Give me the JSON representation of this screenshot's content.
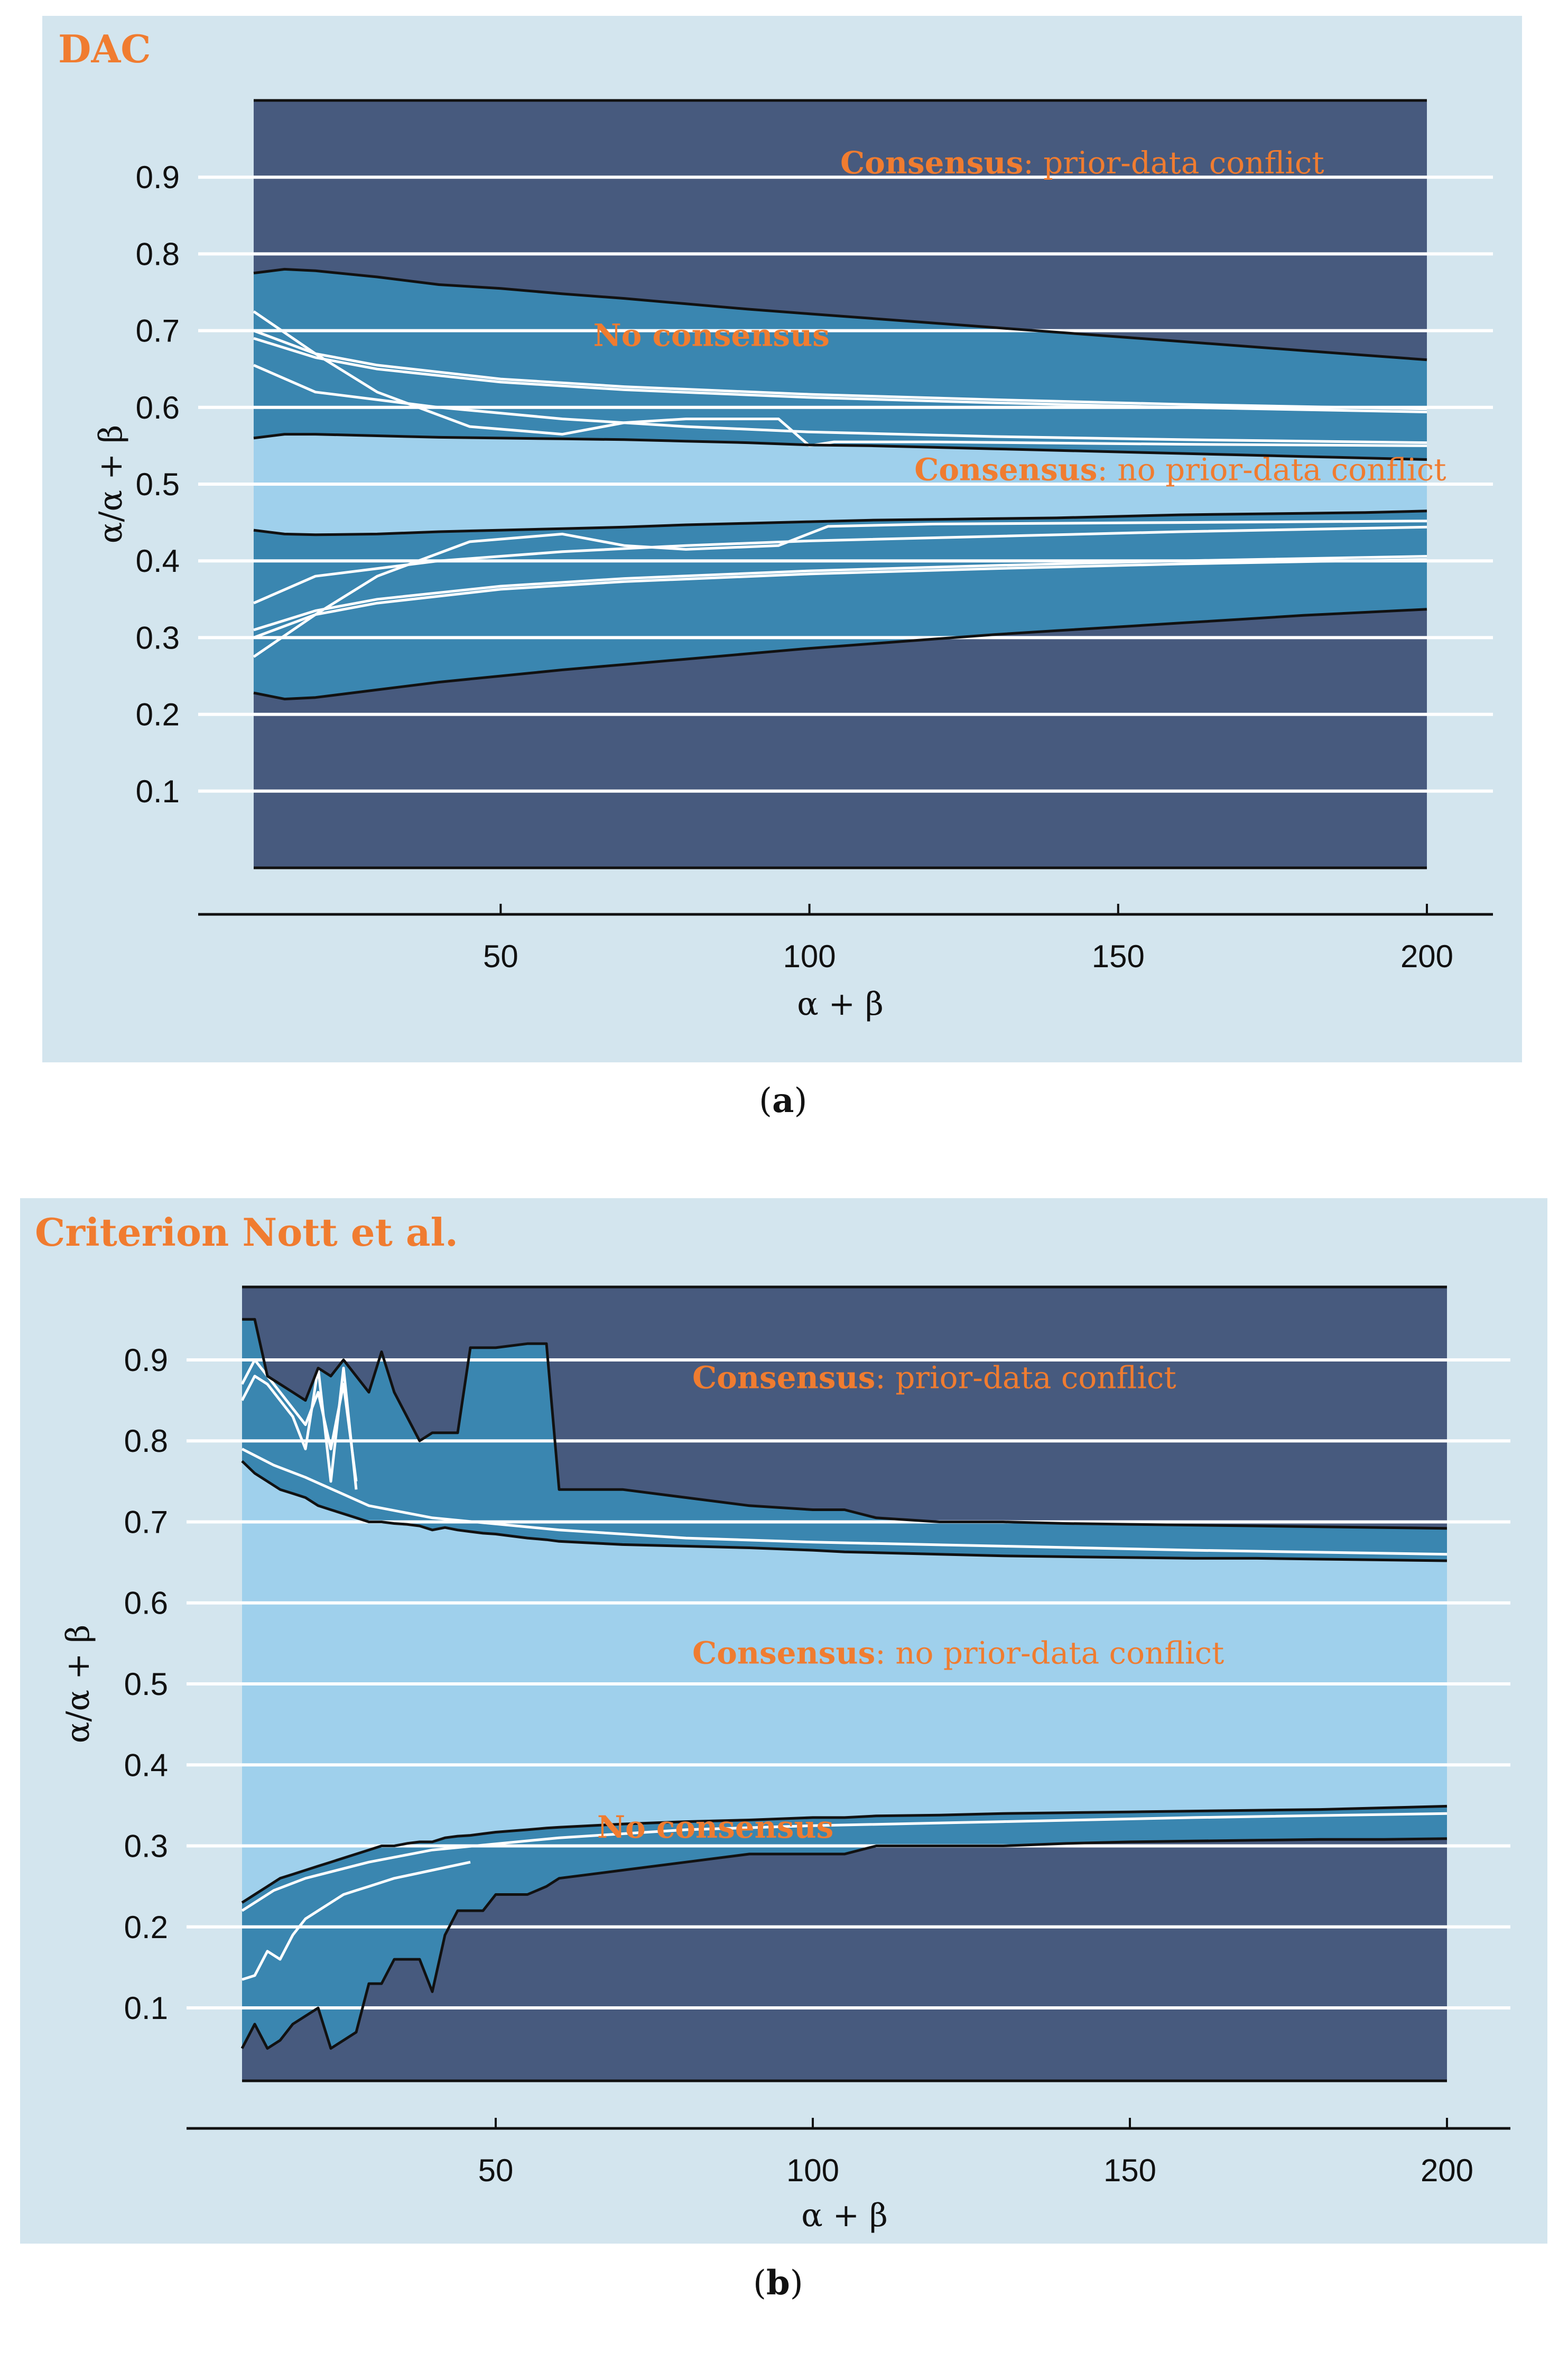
{
  "captions": {
    "a_open": "(",
    "a_letter": "a",
    "a_close": ")",
    "b_open": "(",
    "b_letter": "b",
    "b_close": ")"
  },
  "colors": {
    "panel_bg": "#d3e5ee",
    "prior_data_conflict": "#475a7e",
    "no_consensus": "#3a86b0",
    "no_conflict": "#9fd0ec",
    "annotation": "#f07c30",
    "gridline": "#ffffff",
    "boundary": "#111111"
  },
  "chart_data": [
    {
      "id": "a",
      "type": "area",
      "title": "DAC",
      "xlabel": "α + β",
      "ylabel": "α/α + β",
      "xlim": [
        10,
        200
      ],
      "ylim": [
        0,
        1.0
      ],
      "xticks": [
        50,
        100,
        150,
        200
      ],
      "yticks": [
        0.1,
        0.2,
        0.3,
        0.4,
        0.5,
        0.6,
        0.7,
        0.8,
        0.9
      ],
      "grid": "horizontal",
      "annotations": [
        {
          "bold": "Consensus",
          "rest": ": prior-data conflict",
          "x": 105,
          "y": 0.905
        },
        {
          "bold": "No consensus",
          "rest": "",
          "x": 65,
          "y": 0.68
        },
        {
          "bold": "Consensus",
          "rest": ": no prior-data conflict",
          "x": 117,
          "y": 0.505
        }
      ],
      "boundaries": {
        "x": [
          10,
          15,
          20,
          30,
          40,
          50,
          60,
          70,
          80,
          90,
          100,
          110,
          120,
          130,
          140,
          150,
          160,
          170,
          180,
          190,
          200
        ],
        "upper_outer": [
          0.775,
          0.78,
          0.778,
          0.77,
          0.76,
          0.755,
          0.748,
          0.742,
          0.735,
          0.728,
          0.722,
          0.716,
          0.71,
          0.704,
          0.698,
          0.692,
          0.686,
          0.68,
          0.674,
          0.668,
          0.662
        ],
        "upper_inner": [
          0.56,
          0.565,
          0.565,
          0.563,
          0.561,
          0.56,
          0.559,
          0.558,
          0.556,
          0.554,
          0.551,
          0.55,
          0.548,
          0.546,
          0.544,
          0.542,
          0.54,
          0.538,
          0.536,
          0.534,
          0.532
        ],
        "lower_inner": [
          0.44,
          0.435,
          0.434,
          0.435,
          0.438,
          0.44,
          0.442,
          0.444,
          0.447,
          0.449,
          0.451,
          0.453,
          0.454,
          0.455,
          0.456,
          0.458,
          0.46,
          0.461,
          0.462,
          0.463,
          0.465
        ],
        "lower_outer": [
          0.228,
          0.22,
          0.222,
          0.232,
          0.242,
          0.25,
          0.258,
          0.265,
          0.272,
          0.279,
          0.286,
          0.292,
          0.298,
          0.304,
          0.309,
          0.314,
          0.319,
          0.324,
          0.329,
          0.333,
          0.337
        ]
      },
      "series": [
        {
          "x": [
            10,
            20,
            30,
            50,
            70,
            100,
            130,
            160,
            200
          ],
          "values": [
            0.7,
            0.67,
            0.655,
            0.637,
            0.627,
            0.617,
            0.61,
            0.604,
            0.598
          ]
        },
        {
          "x": [
            10,
            20,
            30,
            50,
            70,
            100,
            130,
            160,
            200
          ],
          "values": [
            0.69,
            0.665,
            0.65,
            0.633,
            0.623,
            0.613,
            0.606,
            0.6,
            0.594
          ]
        },
        {
          "x": [
            10,
            20,
            30,
            45,
            60,
            70,
            80,
            95,
            100,
            104,
            120,
            160,
            200
          ],
          "values": [
            0.725,
            0.67,
            0.62,
            0.575,
            0.565,
            0.58,
            0.585,
            0.585,
            0.55,
            0.555,
            0.555,
            0.552,
            0.55
          ]
        },
        {
          "x": [
            10,
            20,
            40,
            60,
            80,
            100,
            130,
            160,
            200
          ],
          "values": [
            0.655,
            0.62,
            0.6,
            0.585,
            0.575,
            0.568,
            0.562,
            0.558,
            0.554
          ]
        },
        {
          "x": [
            10,
            20,
            30,
            50,
            70,
            100,
            130,
            160,
            200
          ],
          "values": [
            0.3,
            0.33,
            0.345,
            0.363,
            0.373,
            0.383,
            0.39,
            0.396,
            0.402
          ]
        },
        {
          "x": [
            10,
            20,
            30,
            50,
            70,
            100,
            130,
            160,
            200
          ],
          "values": [
            0.31,
            0.335,
            0.35,
            0.367,
            0.377,
            0.387,
            0.394,
            0.4,
            0.406
          ]
        },
        {
          "x": [
            10,
            20,
            30,
            45,
            60,
            70,
            80,
            95,
            103,
            120,
            160,
            200
          ],
          "values": [
            0.275,
            0.33,
            0.38,
            0.425,
            0.435,
            0.42,
            0.415,
            0.42,
            0.445,
            0.448,
            0.45,
            0.452
          ]
        },
        {
          "x": [
            10,
            20,
            40,
            60,
            80,
            100,
            130,
            160,
            200
          ],
          "values": [
            0.345,
            0.38,
            0.4,
            0.412,
            0.42,
            0.426,
            0.432,
            0.438,
            0.444
          ]
        }
      ]
    },
    {
      "id": "b",
      "type": "area",
      "title": "Criterion Nott et al.",
      "xlabel": "α + β",
      "ylabel": "α/α + β",
      "xlim": [
        10,
        200
      ],
      "ylim": [
        0.01,
        0.99
      ],
      "xticks": [
        50,
        100,
        150,
        200
      ],
      "yticks": [
        0.1,
        0.2,
        0.3,
        0.4,
        0.5,
        0.6,
        0.7,
        0.8,
        0.9
      ],
      "grid": "horizontal",
      "annotations": [
        {
          "bold": "Consensus",
          "rest": ": prior-data conflict",
          "x": 81,
          "y": 0.865
        },
        {
          "bold": "Consensus",
          "rest": ": no prior-data conflict",
          "x": 81,
          "y": 0.525
        },
        {
          "bold": "No consensus",
          "rest": "",
          "x": 66,
          "y": 0.31
        }
      ],
      "boundaries": {
        "x": [
          10,
          12,
          14,
          16,
          18,
          20,
          22,
          24,
          26,
          28,
          30,
          32,
          34,
          36,
          38,
          40,
          42,
          44,
          46,
          48,
          50,
          55,
          58,
          60,
          70,
          80,
          90,
          100,
          105,
          110,
          120,
          130,
          140,
          150,
          160,
          170,
          180,
          190,
          200
        ],
        "upper_outer": [
          0.95,
          0.95,
          0.88,
          0.87,
          0.86,
          0.85,
          0.89,
          0.88,
          0.9,
          0.88,
          0.86,
          0.91,
          0.86,
          0.83,
          0.8,
          0.81,
          0.81,
          0.81,
          0.915,
          0.915,
          0.915,
          0.92,
          0.92,
          0.74,
          0.74,
          0.73,
          0.72,
          0.715,
          0.715,
          0.705,
          0.7,
          0.7,
          0.698,
          0.697,
          0.696,
          0.695,
          0.694,
          0.693,
          0.692
        ],
        "upper_inner": [
          0.775,
          0.76,
          0.75,
          0.74,
          0.735,
          0.73,
          0.72,
          0.715,
          0.71,
          0.705,
          0.7,
          0.7,
          0.698,
          0.697,
          0.695,
          0.69,
          0.693,
          0.69,
          0.688,
          0.686,
          0.685,
          0.68,
          0.678,
          0.676,
          0.672,
          0.67,
          0.668,
          0.665,
          0.663,
          0.662,
          0.66,
          0.658,
          0.657,
          0.656,
          0.655,
          0.655,
          0.654,
          0.653,
          0.652
        ],
        "lower_inner": [
          0.23,
          0.24,
          0.25,
          0.26,
          0.265,
          0.27,
          0.275,
          0.28,
          0.285,
          0.29,
          0.295,
          0.3,
          0.3,
          0.303,
          0.305,
          0.305,
          0.31,
          0.312,
          0.313,
          0.315,
          0.317,
          0.32,
          0.322,
          0.323,
          0.327,
          0.33,
          0.332,
          0.335,
          0.335,
          0.337,
          0.338,
          0.34,
          0.341,
          0.342,
          0.343,
          0.344,
          0.345,
          0.347,
          0.349
        ],
        "lower_outer": [
          0.05,
          0.08,
          0.05,
          0.06,
          0.08,
          0.09,
          0.1,
          0.05,
          0.06,
          0.07,
          0.13,
          0.13,
          0.16,
          0.16,
          0.16,
          0.12,
          0.19,
          0.22,
          0.22,
          0.22,
          0.24,
          0.24,
          0.25,
          0.26,
          0.27,
          0.28,
          0.29,
          0.29,
          0.29,
          0.3,
          0.3,
          0.3,
          0.303,
          0.305,
          0.306,
          0.307,
          0.308,
          0.308,
          0.309
        ]
      },
      "series": [
        {
          "x": [
            10,
            15,
            20,
            30,
            40,
            60,
            80,
            100,
            130,
            160,
            200
          ],
          "values": [
            0.79,
            0.77,
            0.755,
            0.72,
            0.705,
            0.69,
            0.68,
            0.675,
            0.67,
            0.665,
            0.66
          ]
        },
        {
          "x": [
            10,
            12,
            14,
            16,
            18,
            20,
            22,
            24,
            26,
            28
          ],
          "values": [
            0.85,
            0.88,
            0.87,
            0.85,
            0.83,
            0.79,
            0.89,
            0.75,
            0.89,
            0.74
          ]
        },
        {
          "x": [
            10,
            12,
            14,
            16,
            18,
            20,
            22,
            24,
            26,
            28
          ],
          "values": [
            0.87,
            0.9,
            0.88,
            0.86,
            0.84,
            0.82,
            0.86,
            0.79,
            0.87,
            0.75
          ]
        },
        {
          "x": [
            10,
            15,
            20,
            30,
            40,
            60,
            80,
            100,
            130,
            160,
            200
          ],
          "values": [
            0.22,
            0.245,
            0.26,
            0.28,
            0.295,
            0.31,
            0.32,
            0.325,
            0.33,
            0.335,
            0.34
          ]
        },
        {
          "x": [
            10,
            12,
            14,
            16,
            18,
            20,
            22,
            24,
            26,
            28,
            30,
            34,
            40,
            46
          ],
          "values": [
            0.135,
            0.14,
            0.17,
            0.16,
            0.19,
            0.21,
            0.22,
            0.23,
            0.24,
            0.245,
            0.25,
            0.26,
            0.27,
            0.28
          ]
        }
      ]
    }
  ]
}
